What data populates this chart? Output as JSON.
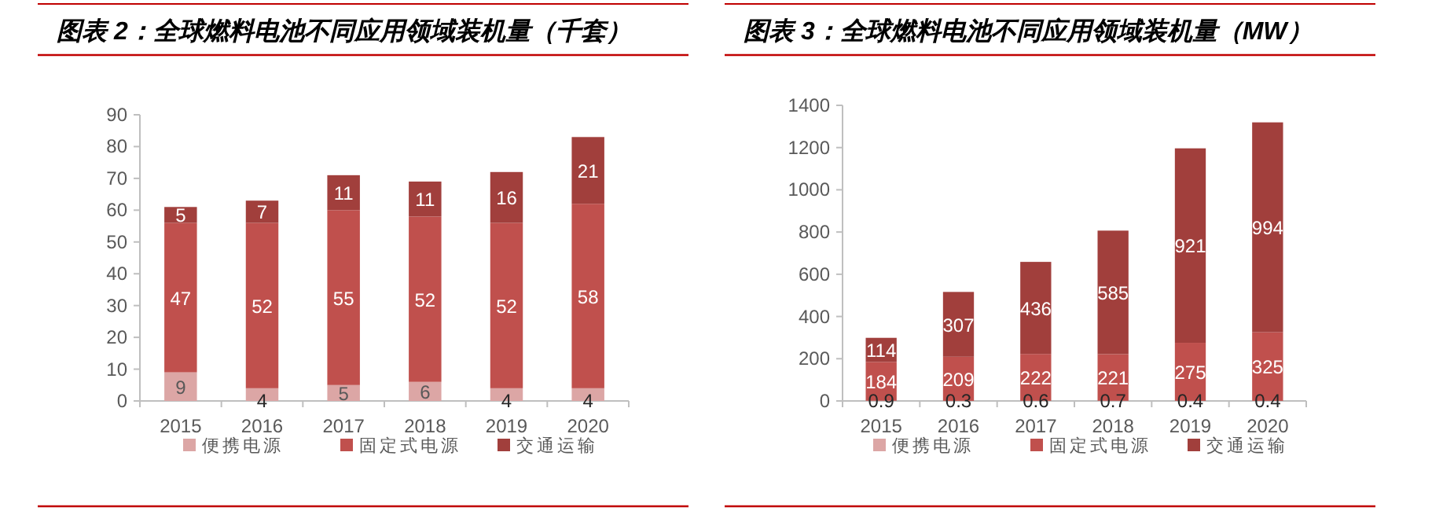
{
  "chart_data": [
    {
      "type": "bar",
      "title": "图表 2：全球燃料电池不同应用领域装机量（千套）",
      "stacked": true,
      "data_labels": true,
      "legend": "bottom",
      "grid": false,
      "categories": [
        "2015",
        "2016",
        "2017",
        "2018",
        "2019",
        "2020"
      ],
      "ylim": [
        0,
        90
      ],
      "yticks": [
        0,
        10,
        20,
        30,
        40,
        50,
        60,
        70,
        80,
        90
      ],
      "series": [
        {
          "name": "便携电源",
          "color": "#dca6a5",
          "values": [
            9,
            4,
            5,
            6,
            4,
            4
          ]
        },
        {
          "name": "固定式电源",
          "color": "#c0504d",
          "values": [
            47,
            52,
            55,
            52,
            52,
            58
          ]
        },
        {
          "name": "交通运输",
          "color": "#a13f3c",
          "values": [
            5,
            7,
            11,
            11,
            16,
            21
          ]
        }
      ]
    },
    {
      "type": "bar",
      "title": "图表 3：全球燃料电池不同应用领域装机量（MW）",
      "stacked": true,
      "data_labels": true,
      "legend": "bottom",
      "grid": false,
      "categories": [
        "2015",
        "2016",
        "2017",
        "2018",
        "2019",
        "2020"
      ],
      "ylim": [
        0,
        1400
      ],
      "yticks": [
        0,
        200,
        400,
        600,
        800,
        1000,
        1200,
        1400
      ],
      "series": [
        {
          "name": "便携电源",
          "color": "#dca6a5",
          "values": [
            0.9,
            0.3,
            0.6,
            0.7,
            0.4,
            0.4
          ]
        },
        {
          "name": "固定式电源",
          "color": "#c0504d",
          "values": [
            184,
            209,
            222,
            221,
            275,
            325
          ]
        },
        {
          "name": "交通运输",
          "color": "#a13f3c",
          "values": [
            114,
            307,
            436,
            585,
            921,
            994
          ]
        }
      ]
    }
  ]
}
